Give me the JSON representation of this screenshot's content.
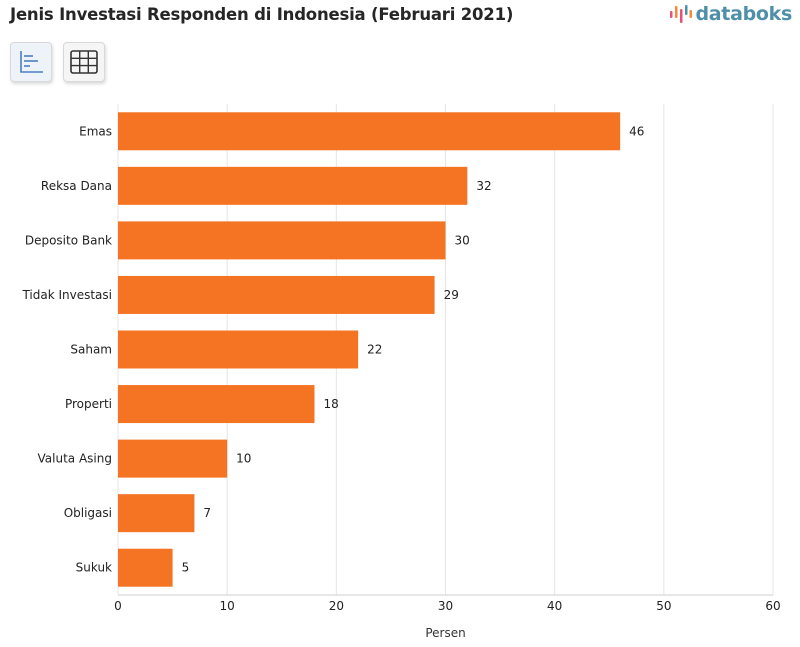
{
  "header": {
    "title": "Jenis Investasi Responden di Indonesia (Februari 2021)",
    "brand": "databoks"
  },
  "toolbar": {
    "chart_view_icon": "bar-chart-icon",
    "table_view_icon": "table-grid-icon"
  },
  "colors": {
    "bar": "#f47424",
    "grid": "#e6e6e6",
    "brand": "#4f8fa9"
  },
  "chart_data": {
    "type": "bar",
    "orientation": "horizontal",
    "title": "Jenis Investasi Responden di Indonesia (Februari 2021)",
    "categories": [
      "Emas",
      "Reksa Dana",
      "Deposito Bank",
      "Tidak Investasi",
      "Saham",
      "Properti",
      "Valuta Asing",
      "Obligasi",
      "Sukuk"
    ],
    "values": [
      46,
      32,
      30,
      29,
      22,
      18,
      10,
      7,
      5
    ],
    "xlabel": "Persen",
    "ylabel": "",
    "xlim": [
      0,
      60
    ],
    "xticks": [
      0,
      10,
      20,
      30,
      40,
      50,
      60
    ],
    "grid": true,
    "data_labels": true
  }
}
